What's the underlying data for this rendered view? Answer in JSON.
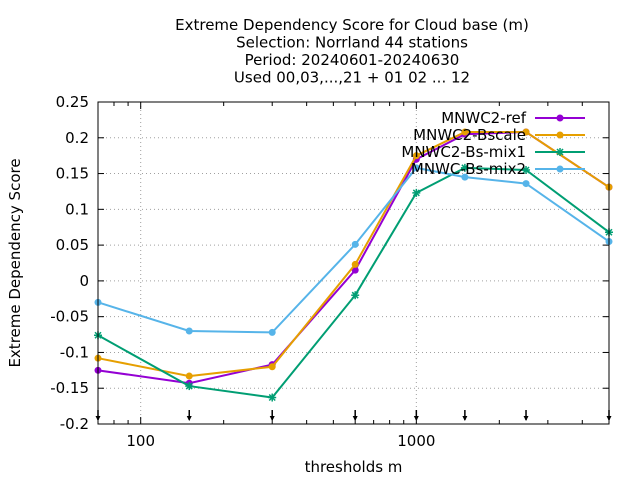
{
  "chart_data": {
    "type": "line",
    "title": [
      "Extreme Dependency Score  for Cloud base (m)",
      "Selection: Norrland     44 stations",
      "Period: 20240601-20240630",
      "Used 00,03,...,21 + 01 02 ... 12"
    ],
    "xlabel": "thresholds m",
    "ylabel": "Extreme Dependency Score",
    "xscale": "log",
    "xlim": [
      70,
      5000
    ],
    "ylim": [
      -0.2,
      0.25
    ],
    "xticks": [
      100,
      1000
    ],
    "yticks": [
      -0.2,
      -0.15,
      -0.1,
      -0.05,
      0,
      0.05,
      0.1,
      0.15,
      0.2,
      0.25
    ],
    "ytick_labels": [
      "-0.2",
      "-0.15",
      "-0.1",
      "-0.05",
      "0",
      "0.05",
      "0.1",
      "0.15",
      "0.2",
      "0.25"
    ],
    "xtick_labels": [
      "100",
      "1000"
    ],
    "grid": true,
    "legend": "top-right",
    "x": [
      70,
      150,
      300,
      600,
      1000,
      1500,
      2500,
      5000
    ],
    "threshold_markers": [
      70,
      150,
      300,
      600,
      1000,
      1500,
      2500,
      5000
    ],
    "series": [
      {
        "name": "MNWC2-ref",
        "color": "#9400d3",
        "marker": "circle",
        "values": [
          -0.125,
          -0.143,
          -0.117,
          0.015,
          0.17,
          0.205,
          0.208,
          0.131
        ]
      },
      {
        "name": "MNWC2-Bscale",
        "color": "#e69f00",
        "marker": "circle",
        "values": [
          -0.108,
          -0.133,
          -0.12,
          0.023,
          0.175,
          0.208,
          0.208,
          0.131
        ]
      },
      {
        "name": "MNWC2-Bs-mix1",
        "color": "#009e73",
        "marker": "star",
        "values": [
          -0.076,
          -0.147,
          -0.163,
          -0.02,
          0.123,
          0.158,
          0.155,
          0.068
        ]
      },
      {
        "name": "MNWC-Bs-mix2",
        "color": "#56b4e9",
        "marker": "circle",
        "values": [
          -0.03,
          -0.07,
          -0.072,
          0.051,
          0.158,
          0.145,
          0.136,
          0.055
        ]
      }
    ]
  }
}
